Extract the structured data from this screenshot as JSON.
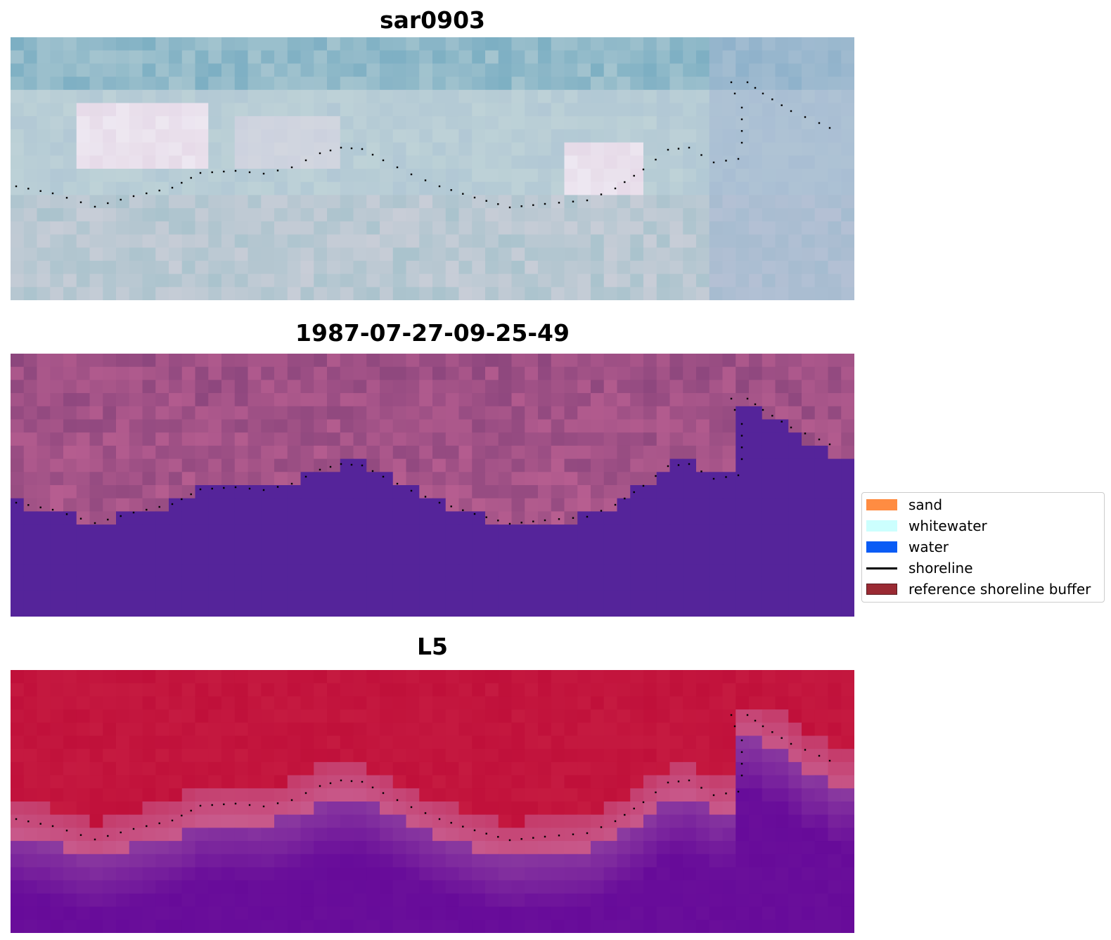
{
  "panels": [
    {
      "title": "sar0903",
      "style": "rgb image"
    },
    {
      "title": "1987-07-27-09-25-49",
      "style": "classified image"
    },
    {
      "title": "L5",
      "style": "water index image"
    }
  ],
  "legend": {
    "items": [
      {
        "label": "sand",
        "color": "#ff8c42",
        "kind": "patch"
      },
      {
        "label": "whitewater",
        "color": "#ccfffe",
        "kind": "patch"
      },
      {
        "label": "water",
        "color": "#0a5cf5",
        "kind": "patch"
      },
      {
        "label": "shoreline",
        "color": "#000000",
        "kind": "line"
      },
      {
        "label": "reference shoreline buffer",
        "color": "#9a2a33",
        "kind": "patch"
      }
    ]
  },
  "colors": {
    "water_class": "#55249a",
    "land_class": "#9c4f85",
    "index_high": "#c0103a",
    "index_low": "#6a0f9a",
    "shoreline_points": "#000000"
  }
}
